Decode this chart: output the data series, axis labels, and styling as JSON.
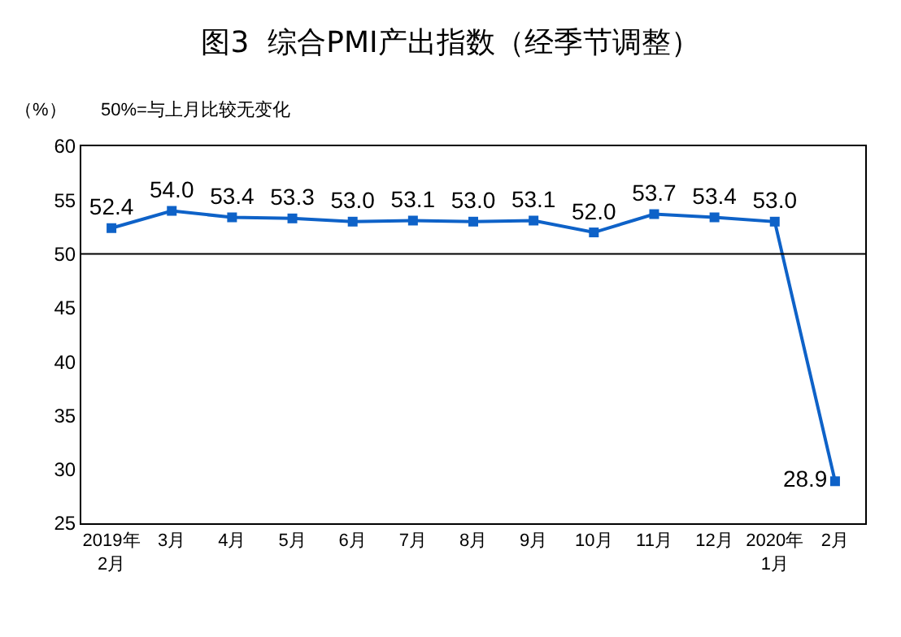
{
  "chart_data": {
    "type": "line",
    "title": "图3  综合PMI产出指数（经季节调整）",
    "ylabel": "（%）",
    "annotations": [
      "50%=与上月比较无变化"
    ],
    "categories": [
      "2019年\n2月",
      "3月",
      "4月",
      "5月",
      "6月",
      "7月",
      "8月",
      "9月",
      "10月",
      "11月",
      "12月",
      "2020年\n1月",
      "2月"
    ],
    "series": [
      {
        "color": "#0e62c8",
        "values": [
          52.4,
          54.0,
          53.4,
          53.3,
          53.0,
          53.1,
          53.0,
          53.1,
          52.0,
          53.7,
          53.4,
          53.0,
          28.9
        ],
        "value_labels": [
          "52.4",
          "54.0",
          "53.4",
          "53.3",
          "53.0",
          "53.1",
          "53.0",
          "53.1",
          "52.0",
          "53.7",
          "53.4",
          "53.0",
          "28.9"
        ]
      }
    ],
    "ylim": [
      25,
      60
    ],
    "yticks": [
      25,
      30,
      35,
      40,
      45,
      50,
      55,
      60
    ],
    "ref_lines": [
      {
        "axis": "y",
        "value": 50,
        "color": "#000000"
      }
    ],
    "marker": "square",
    "grid": false,
    "legend": false
  }
}
